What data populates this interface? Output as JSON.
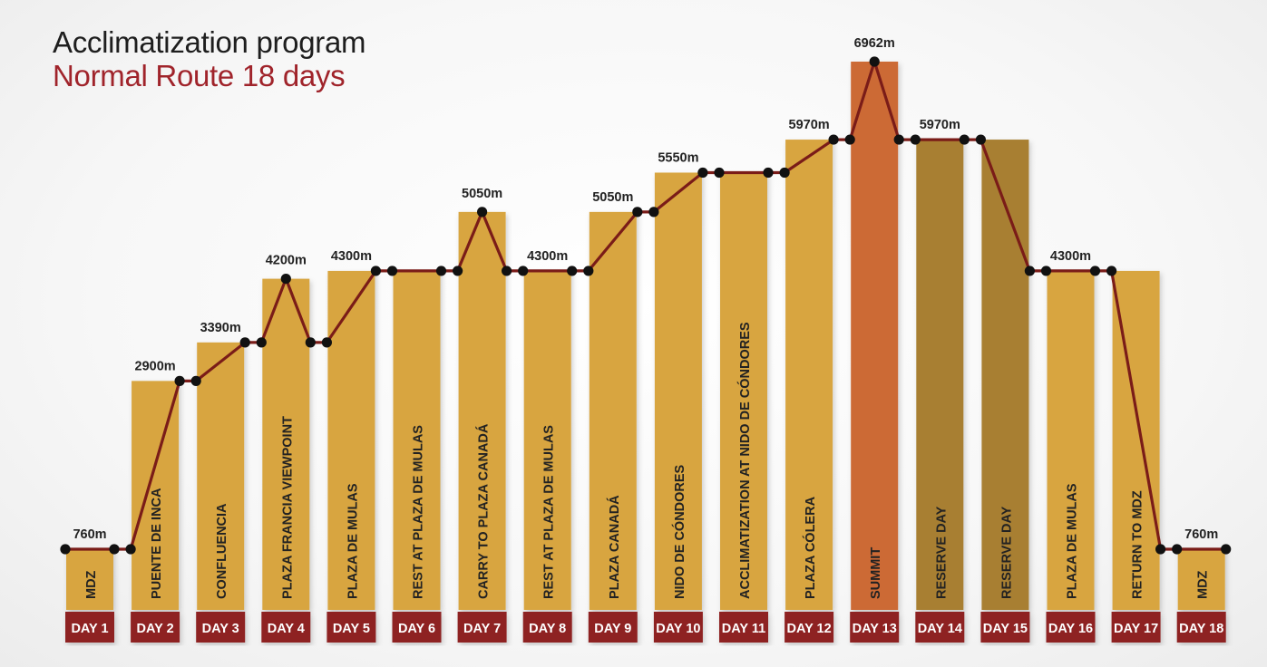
{
  "title": "Acclimatization program",
  "subtitle": "Normal Route 18 days",
  "colors": {
    "bar": "#d8a540",
    "bar_summit": "#cc6a35",
    "bar_reserve": "#a87f32",
    "day_badge": "#8e2424",
    "line": "#7a1c18",
    "marker": "#111111",
    "text": "#222222"
  },
  "chart_data": {
    "type": "bar",
    "title": "Acclimatization program",
    "subtitle": "Normal Route 18 days",
    "ylabel": "",
    "xlabel": "",
    "ylim": [
      760,
      6962
    ],
    "categories": [
      "DAY 1",
      "DAY 2",
      "DAY 3",
      "DAY 4",
      "DAY 5",
      "DAY 6",
      "DAY 7",
      "DAY 8",
      "DAY 9",
      "DAY 10",
      "DAY 11",
      "DAY 12",
      "DAY 13",
      "DAY 14",
      "DAY 15",
      "DAY 16",
      "DAY 17",
      "DAY 18"
    ],
    "places": [
      "MDZ",
      "PUENTE DE INCA",
      "CONFLUENCIA",
      "PLAZA FRANCIA VIEWPOINT",
      "PLAZA DE MULAS",
      "REST AT  PLAZA DE MULAS",
      "CARRY TO PLAZA CANADÁ",
      "REST AT PLAZA DE MULAS",
      "PLAZA CANADÁ",
      "NIDO DE CÓNDORES",
      "ACCLIMATIZATION AT NIDO DE CÓNDORES",
      "PLAZA CÓLERA",
      "SUMMIT",
      "RESERVE DAY",
      "RESERVE DAY",
      "PLAZA DE MULAS",
      "RETURN TO MDZ",
      "MDZ"
    ],
    "values": [
      760,
      2900,
      3390,
      4200,
      4300,
      4300,
      5050,
      4300,
      5050,
      5550,
      5550,
      5970,
      6962,
      5970,
      5970,
      4300,
      4300,
      760
    ],
    "kinds": [
      "normal",
      "normal",
      "normal",
      "normal",
      "normal",
      "normal",
      "normal",
      "normal",
      "normal",
      "normal",
      "normal",
      "normal",
      "summit",
      "reserve",
      "reserve",
      "normal",
      "normal",
      "normal"
    ],
    "bar_labels": [
      "760m",
      "2900m",
      "3390m",
      "4200m",
      "4300m",
      "",
      "5050m",
      "4300m",
      "5050m",
      "5550m",
      "",
      "5970m",
      "6962m",
      "5970m",
      "",
      "4300m",
      "",
      "760m"
    ],
    "profile": [
      [
        1,
        "start",
        760
      ],
      [
        1,
        "end",
        760
      ],
      [
        2,
        "start",
        760
      ],
      [
        2,
        "end",
        2900
      ],
      [
        3,
        "start",
        2900
      ],
      [
        3,
        "end",
        3390
      ],
      [
        4,
        "start",
        3390
      ],
      [
        4,
        "peak",
        4200
      ],
      [
        4,
        "end",
        3390
      ],
      [
        5,
        "start",
        3390
      ],
      [
        5,
        "end",
        4300
      ],
      [
        6,
        "start",
        4300
      ],
      [
        6,
        "end",
        4300
      ],
      [
        7,
        "start",
        4300
      ],
      [
        7,
        "peak",
        5050
      ],
      [
        7,
        "end",
        4300
      ],
      [
        8,
        "start",
        4300
      ],
      [
        8,
        "end",
        4300
      ],
      [
        9,
        "start",
        4300
      ],
      [
        9,
        "end",
        5050
      ],
      [
        10,
        "start",
        5050
      ],
      [
        10,
        "end",
        5550
      ],
      [
        11,
        "start",
        5550
      ],
      [
        11,
        "end",
        5550
      ],
      [
        12,
        "start",
        5550
      ],
      [
        12,
        "end",
        5970
      ],
      [
        13,
        "start",
        5970
      ],
      [
        13,
        "peak",
        6962
      ],
      [
        13,
        "end",
        5970
      ],
      [
        14,
        "start",
        5970
      ],
      [
        14,
        "end",
        5970
      ],
      [
        15,
        "start",
        5970
      ],
      [
        15,
        "end",
        4300
      ],
      [
        16,
        "start",
        4300
      ],
      [
        16,
        "end",
        4300
      ],
      [
        17,
        "start",
        4300
      ],
      [
        17,
        "end",
        760
      ],
      [
        18,
        "start",
        760
      ],
      [
        18,
        "end",
        760
      ]
    ]
  }
}
